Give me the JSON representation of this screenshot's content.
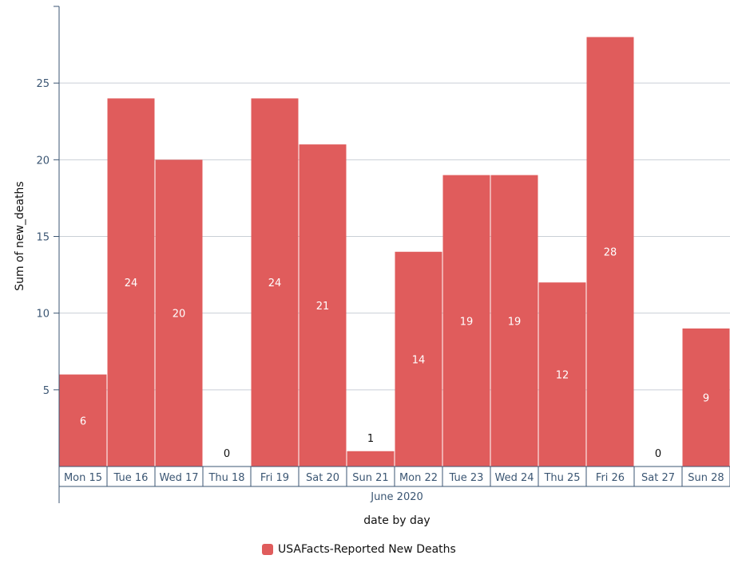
{
  "chart_data": {
    "type": "bar",
    "categories": [
      "Mon 15",
      "Tue 16",
      "Wed 17",
      "Thu 18",
      "Fri 19",
      "Sat 20",
      "Sun 21",
      "Mon 22",
      "Tue 23",
      "Wed 24",
      "Thu 25",
      "Fri 26",
      "Sat 27",
      "Sun 28"
    ],
    "group_label": "June 2020",
    "series": [
      {
        "name": "USAFacts-Reported New Deaths",
        "color": "#e05c5c",
        "values": [
          6,
          24,
          20,
          0,
          24,
          21,
          1,
          14,
          19,
          19,
          12,
          28,
          0,
          9
        ]
      }
    ],
    "xlabel": "date by day",
    "ylabel": "Sum of new_deaths",
    "yticks": [
      5,
      10,
      15,
      20,
      25
    ],
    "ylim": [
      0,
      30
    ],
    "grid": true,
    "legend_position": "bottom-center"
  }
}
